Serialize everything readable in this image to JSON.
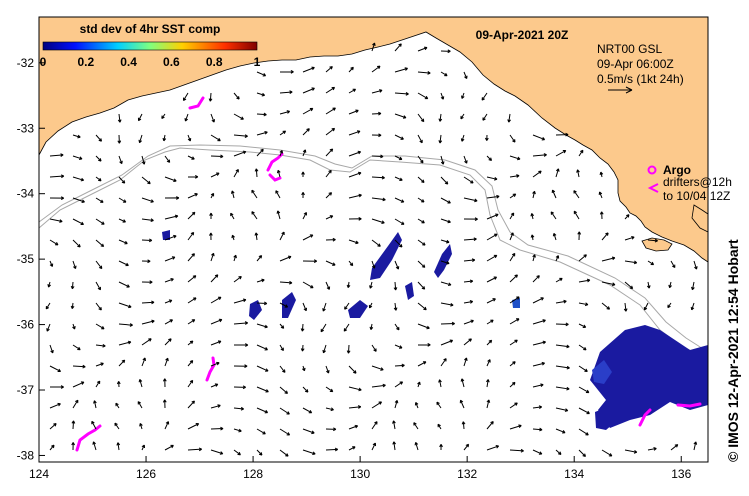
{
  "title": "09-Apr-2021 20Z",
  "colorbar": {
    "label": "std dev of 4hr SST comp",
    "ticks": [
      "0",
      "0.2",
      "0.4",
      "0.6",
      "0.8",
      "1"
    ]
  },
  "current_legend": {
    "line1": "NRT00 GSL",
    "line2": "09-Apr 06:00Z",
    "line3": "0.5m/s (1kt 24h)"
  },
  "argo_legend": {
    "label": "Argo",
    "drifters_line1": "drifters@12h",
    "drifters_line2": "to 10/04 12Z"
  },
  "credit": "© IMOS 12-Apr-2021 12:54 Hobart",
  "axes": {
    "x_ticks": [
      "124",
      "126",
      "128",
      "130",
      "132",
      "134",
      "136"
    ],
    "y_ticks": [
      "-32",
      "-33",
      "-34",
      "-35",
      "-36",
      "-37",
      "-38"
    ]
  },
  "colors": {
    "land": "#fcc98c",
    "argo": "#ff00ff",
    "sst_high": "#1a1aa0",
    "sst_low": "#1e50c8",
    "contour": "#a8a8a8"
  }
}
